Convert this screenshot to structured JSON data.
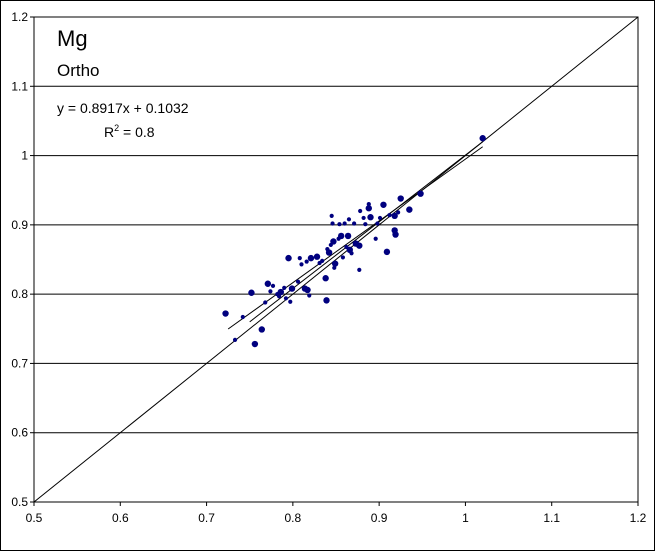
{
  "chart_data": {
    "type": "scatter",
    "title": "Mg",
    "subtitle": "Ortho",
    "xlim": [
      0.5,
      1.2
    ],
    "ylim": [
      0.5,
      1.2
    ],
    "xticks": [
      "0.5",
      "0.6",
      "0.7",
      "0.8",
      "0.9",
      "1",
      "1.1",
      "1.2"
    ],
    "yticks": [
      "0.5",
      "0.6",
      "0.7",
      "0.8",
      "0.9",
      "1",
      "1.1",
      "1.2"
    ],
    "grid": "horizontal",
    "colors": {
      "points": "#00007f",
      "lines": "#000000",
      "gridlines": "#000000"
    },
    "regression": {
      "equation": "y = 0.8917x + 0.1032",
      "r2_label": "R",
      "r2_sup": "2",
      "r2_value": " = 0.8",
      "slope": 0.8917,
      "intercept": 0.1032,
      "x_range": [
        0.725,
        1.02
      ]
    },
    "identity_line": {
      "x_range": [
        0.5,
        1.2
      ]
    },
    "trend_line_2": {
      "x1": 0.75,
      "y1": 0.76,
      "x2": 1.02,
      "y2": 1.02
    },
    "points": [
      {
        "x": 0.722,
        "y": 0.772,
        "size": "large"
      },
      {
        "x": 0.733,
        "y": 0.734,
        "size": "small"
      },
      {
        "x": 0.742,
        "y": 0.767,
        "size": "small"
      },
      {
        "x": 0.752,
        "y": 0.802,
        "size": "large"
      },
      {
        "x": 0.756,
        "y": 0.728,
        "size": "large"
      },
      {
        "x": 0.764,
        "y": 0.749,
        "size": "large"
      },
      {
        "x": 0.768,
        "y": 0.788,
        "size": "small"
      },
      {
        "x": 0.771,
        "y": 0.815,
        "size": "large"
      },
      {
        "x": 0.774,
        "y": 0.804,
        "size": "small"
      },
      {
        "x": 0.777,
        "y": 0.812,
        "size": "small"
      },
      {
        "x": 0.782,
        "y": 0.8,
        "size": "small"
      },
      {
        "x": 0.784,
        "y": 0.797,
        "size": "small"
      },
      {
        "x": 0.786,
        "y": 0.803,
        "size": "large"
      },
      {
        "x": 0.79,
        "y": 0.809,
        "size": "small"
      },
      {
        "x": 0.792,
        "y": 0.794,
        "size": "small"
      },
      {
        "x": 0.795,
        "y": 0.852,
        "size": "large"
      },
      {
        "x": 0.797,
        "y": 0.789,
        "size": "small"
      },
      {
        "x": 0.799,
        "y": 0.808,
        "size": "large"
      },
      {
        "x": 0.806,
        "y": 0.818,
        "size": "small"
      },
      {
        "x": 0.808,
        "y": 0.852,
        "size": "small"
      },
      {
        "x": 0.81,
        "y": 0.843,
        "size": "small"
      },
      {
        "x": 0.814,
        "y": 0.808,
        "size": "large"
      },
      {
        "x": 0.816,
        "y": 0.847,
        "size": "small"
      },
      {
        "x": 0.817,
        "y": 0.806,
        "size": "large"
      },
      {
        "x": 0.819,
        "y": 0.798,
        "size": "small"
      },
      {
        "x": 0.821,
        "y": 0.852,
        "size": "large"
      },
      {
        "x": 0.828,
        "y": 0.854,
        "size": "large"
      },
      {
        "x": 0.831,
        "y": 0.845,
        "size": "small"
      },
      {
        "x": 0.834,
        "y": 0.848,
        "size": "small"
      },
      {
        "x": 0.838,
        "y": 0.823,
        "size": "large"
      },
      {
        "x": 0.839,
        "y": 0.791,
        "size": "large"
      },
      {
        "x": 0.84,
        "y": 0.865,
        "size": "small"
      },
      {
        "x": 0.842,
        "y": 0.86,
        "size": "large"
      },
      {
        "x": 0.844,
        "y": 0.871,
        "size": "small"
      },
      {
        "x": 0.845,
        "y": 0.913,
        "size": "small"
      },
      {
        "x": 0.846,
        "y": 0.902,
        "size": "small"
      },
      {
        "x": 0.847,
        "y": 0.876,
        "size": "large"
      },
      {
        "x": 0.848,
        "y": 0.838,
        "size": "small"
      },
      {
        "x": 0.849,
        "y": 0.844,
        "size": "large"
      },
      {
        "x": 0.853,
        "y": 0.88,
        "size": "small"
      },
      {
        "x": 0.854,
        "y": 0.901,
        "size": "small"
      },
      {
        "x": 0.856,
        "y": 0.884,
        "size": "large"
      },
      {
        "x": 0.858,
        "y": 0.853,
        "size": "small"
      },
      {
        "x": 0.86,
        "y": 0.902,
        "size": "small"
      },
      {
        "x": 0.862,
        "y": 0.868,
        "size": "small"
      },
      {
        "x": 0.864,
        "y": 0.884,
        "size": "large"
      },
      {
        "x": 0.865,
        "y": 0.908,
        "size": "small"
      },
      {
        "x": 0.866,
        "y": 0.864,
        "size": "large"
      },
      {
        "x": 0.868,
        "y": 0.859,
        "size": "small"
      },
      {
        "x": 0.871,
        "y": 0.902,
        "size": "small"
      },
      {
        "x": 0.873,
        "y": 0.873,
        "size": "large"
      },
      {
        "x": 0.877,
        "y": 0.87,
        "size": "large"
      },
      {
        "x": 0.877,
        "y": 0.835,
        "size": "small"
      },
      {
        "x": 0.878,
        "y": 0.92,
        "size": "small"
      },
      {
        "x": 0.882,
        "y": 0.91,
        "size": "small"
      },
      {
        "x": 0.884,
        "y": 0.901,
        "size": "small"
      },
      {
        "x": 0.888,
        "y": 0.924,
        "size": "large"
      },
      {
        "x": 0.888,
        "y": 0.93,
        "size": "small"
      },
      {
        "x": 0.89,
        "y": 0.911,
        "size": "large"
      },
      {
        "x": 0.896,
        "y": 0.88,
        "size": "small"
      },
      {
        "x": 0.898,
        "y": 0.902,
        "size": "small"
      },
      {
        "x": 0.901,
        "y": 0.91,
        "size": "small"
      },
      {
        "x": 0.905,
        "y": 0.929,
        "size": "large"
      },
      {
        "x": 0.909,
        "y": 0.861,
        "size": "large"
      },
      {
        "x": 0.912,
        "y": 0.914,
        "size": "small"
      },
      {
        "x": 0.918,
        "y": 0.913,
        "size": "large"
      },
      {
        "x": 0.918,
        "y": 0.892,
        "size": "large"
      },
      {
        "x": 0.919,
        "y": 0.886,
        "size": "large"
      },
      {
        "x": 0.922,
        "y": 0.918,
        "size": "small"
      },
      {
        "x": 0.925,
        "y": 0.938,
        "size": "large"
      },
      {
        "x": 0.935,
        "y": 0.922,
        "size": "large"
      },
      {
        "x": 0.948,
        "y": 0.945,
        "size": "large"
      },
      {
        "x": 1.02,
        "y": 1.025,
        "size": "large"
      }
    ]
  }
}
